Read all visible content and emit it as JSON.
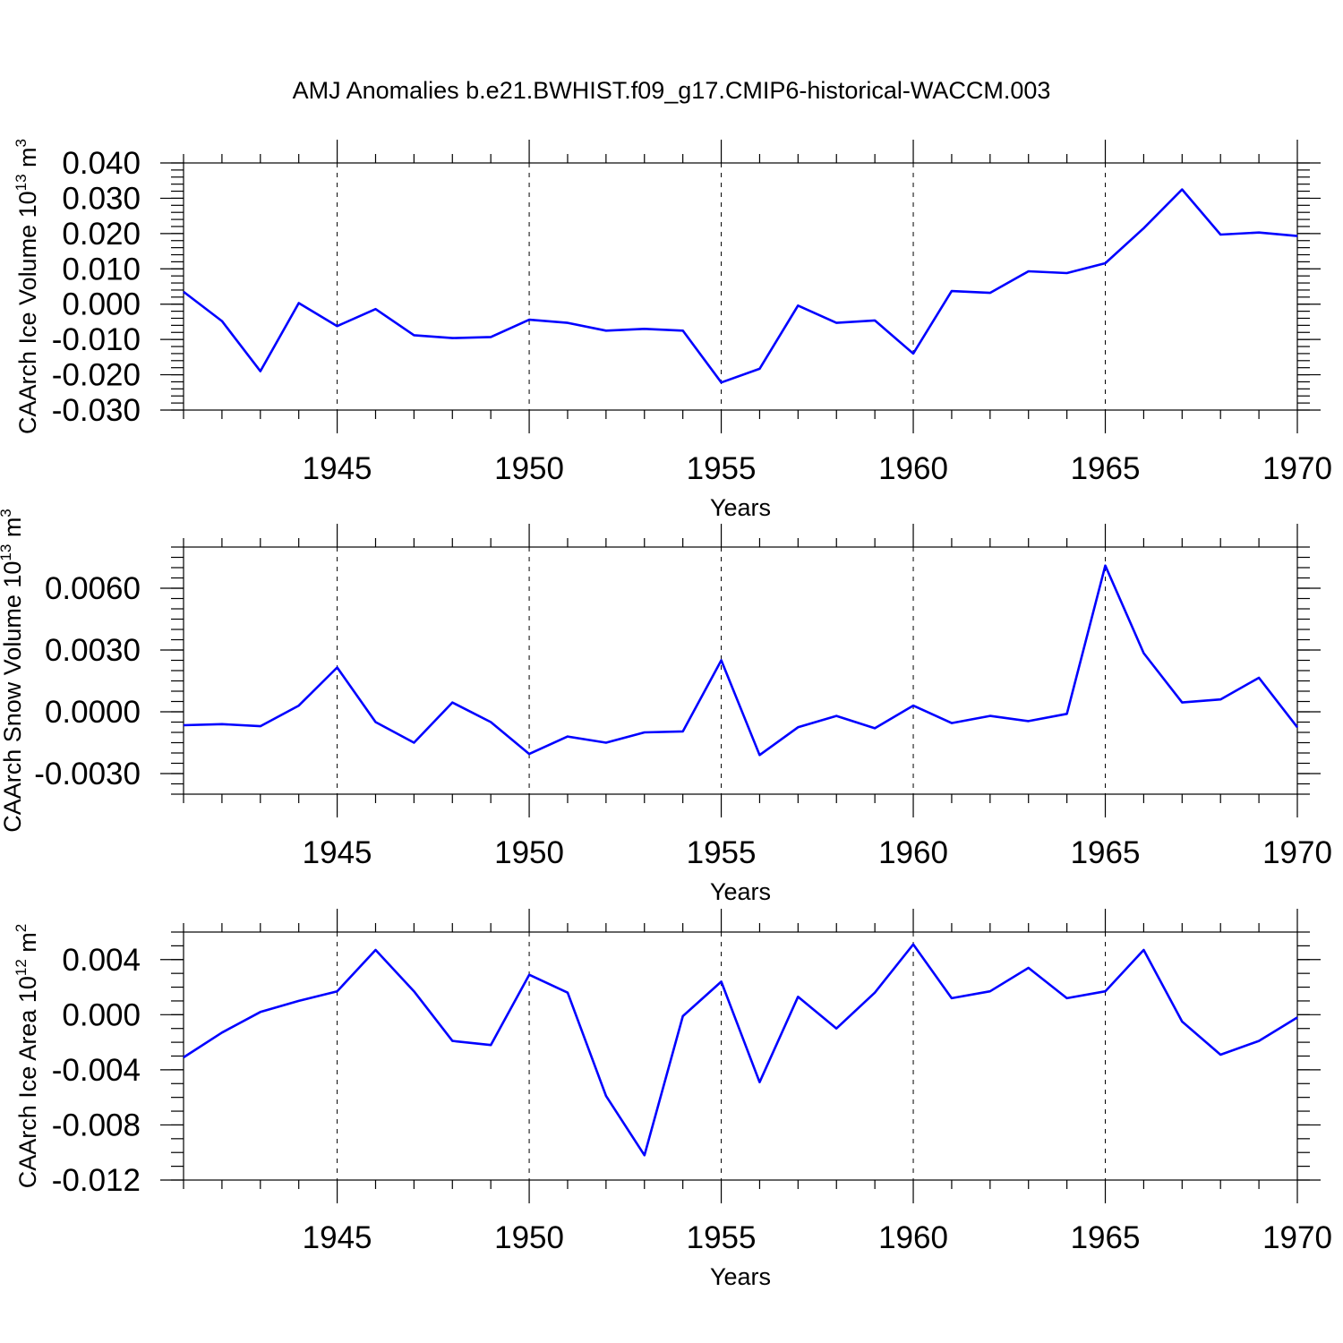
{
  "title": "AMJ Anomalies b.e21.BWHIST.f09_g17.CMIP6-historical-WACCM.003",
  "colors": {
    "line": "#0000ff",
    "axis": "#000000",
    "background": "#ffffff"
  },
  "chart_data": [
    {
      "type": "line",
      "ylabel": "CAArch Ice Volume 10",
      "ylabel_exp": "13",
      "ylabel_unit": " m",
      "ylabel_unit_exp": "3",
      "xlabel": "Years",
      "xlim": [
        1941,
        1970
      ],
      "ylim": [
        -0.03,
        0.04
      ],
      "yticks": [
        -0.03,
        -0.02,
        -0.01,
        0.0,
        0.01,
        0.02,
        0.03,
        0.04
      ],
      "yticklabels": [
        "-0.030",
        "-0.020",
        "-0.010",
        "0.000",
        "0.010",
        "0.020",
        "0.030",
        "0.040"
      ],
      "yminor_step": 0.002,
      "xticks": [
        1945,
        1950,
        1955,
        1960,
        1965,
        1970
      ],
      "xticklabels": [
        "1945",
        "1950",
        "1955",
        "1960",
        "1965",
        "1970"
      ],
      "grid": "dashed vertical at major x ticks",
      "series": [
        {
          "name": "CAArch Ice Volume",
          "x": [
            1941,
            1942,
            1943,
            1944,
            1945,
            1946,
            1947,
            1948,
            1949,
            1950,
            1951,
            1952,
            1953,
            1954,
            1955,
            1956,
            1957,
            1958,
            1959,
            1960,
            1961,
            1962,
            1963,
            1964,
            1965,
            1966,
            1967,
            1968,
            1969,
            1970
          ],
          "values": [
            0.0035,
            -0.0048,
            -0.019,
            0.0003,
            -0.0062,
            -0.0014,
            -0.0088,
            -0.0096,
            -0.0093,
            -0.0044,
            -0.0053,
            -0.0075,
            -0.007,
            -0.0075,
            -0.0222,
            -0.0183,
            -0.0004,
            -0.0053,
            -0.0046,
            -0.014,
            0.0037,
            0.0032,
            0.0093,
            0.0088,
            0.0116,
            0.0215,
            0.0325,
            0.0197,
            0.0203,
            0.0193
          ]
        }
      ]
    },
    {
      "type": "line",
      "ylabel": "CAArch Snow Volume 10",
      "ylabel_exp": "13",
      "ylabel_unit": " m",
      "ylabel_unit_exp": "3",
      "xlabel": "Years",
      "xlim": [
        1941,
        1970
      ],
      "ylim": [
        -0.004,
        0.008
      ],
      "yticks": [
        -0.003,
        0.0,
        0.003,
        0.006
      ],
      "yticklabels": [
        "-0.0030",
        "0.0000",
        "0.0030",
        "0.0060"
      ],
      "yminor_step": 0.0005,
      "xticks": [
        1945,
        1950,
        1955,
        1960,
        1965,
        1970
      ],
      "xticklabels": [
        "1945",
        "1950",
        "1955",
        "1960",
        "1965",
        "1970"
      ],
      "grid": "dashed vertical at major x ticks",
      "series": [
        {
          "name": "CAArch Snow Volume",
          "x": [
            1941,
            1942,
            1943,
            1944,
            1945,
            1946,
            1947,
            1948,
            1949,
            1950,
            1951,
            1952,
            1953,
            1954,
            1955,
            1956,
            1957,
            1958,
            1959,
            1960,
            1961,
            1962,
            1963,
            1964,
            1965,
            1966,
            1967,
            1968,
            1969,
            1970
          ],
          "values": [
            -0.00065,
            -0.0006,
            -0.0007,
            0.0003,
            0.00215,
            -0.0005,
            -0.0015,
            0.00045,
            -0.0005,
            -0.00205,
            -0.0012,
            -0.0015,
            -0.001,
            -0.00095,
            0.0025,
            -0.0021,
            -0.00075,
            -0.0002,
            -0.0008,
            0.0003,
            -0.00055,
            -0.0002,
            -0.00045,
            -0.0001,
            0.0071,
            0.00285,
            0.00045,
            0.0006,
            0.00165,
            -0.00075
          ]
        }
      ]
    },
    {
      "type": "line",
      "ylabel": "CAArch Ice Area 10",
      "ylabel_exp": "12",
      "ylabel_unit": " m",
      "ylabel_unit_exp": "2",
      "xlabel": "Years",
      "xlim": [
        1941,
        1970
      ],
      "ylim": [
        -0.012,
        0.006
      ],
      "yticks": [
        -0.012,
        -0.008,
        -0.004,
        0.0,
        0.004
      ],
      "yticklabels": [
        "-0.012",
        "-0.008",
        "-0.004",
        "0.000",
        "0.004"
      ],
      "yminor_step": 0.001,
      "xticks": [
        1945,
        1950,
        1955,
        1960,
        1965,
        1970
      ],
      "xticklabels": [
        "1945",
        "1950",
        "1955",
        "1960",
        "1965",
        "1970"
      ],
      "grid": "dashed vertical at major x ticks",
      "series": [
        {
          "name": "CAArch Ice Area",
          "x": [
            1941,
            1942,
            1943,
            1944,
            1945,
            1946,
            1947,
            1948,
            1949,
            1950,
            1951,
            1952,
            1953,
            1954,
            1955,
            1956,
            1957,
            1958,
            1959,
            1960,
            1961,
            1962,
            1963,
            1964,
            1965,
            1966,
            1967,
            1968,
            1969,
            1970
          ],
          "values": [
            -0.0031,
            -0.0013,
            0.0002,
            0.001,
            0.0017,
            0.0047,
            0.0017,
            -0.0019,
            -0.0022,
            0.0029,
            0.0016,
            -0.0059,
            -0.0102,
            -0.0001,
            0.0024,
            -0.0049,
            0.0013,
            -0.001,
            0.0016,
            0.0051,
            0.0012,
            0.0017,
            0.0034,
            0.0012,
            0.0017,
            0.0047,
            -0.0005,
            -0.0029,
            -0.0019,
            -0.0002
          ]
        }
      ]
    }
  ]
}
